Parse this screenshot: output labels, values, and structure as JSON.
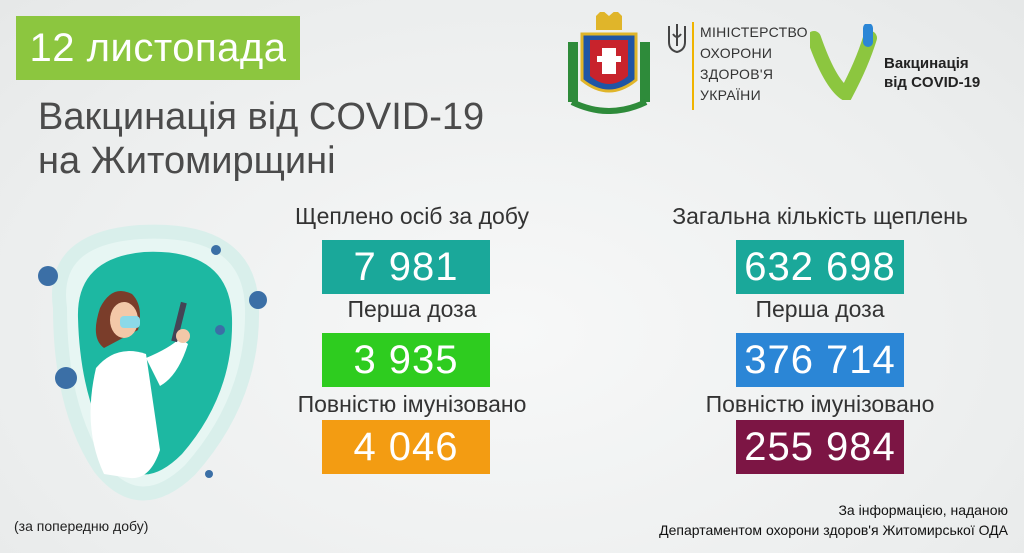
{
  "header": {
    "date": "12 листопада",
    "title_line1": "Вакцинація від COVID-19",
    "title_line2": "на Житомирщині"
  },
  "logos": {
    "ministry_lines": [
      "МІНІСТЕРСТВО",
      "ОХОРОНИ",
      "ЗДОРОВ'Я",
      "УКРАЇНИ"
    ],
    "vax_lines": [
      "Вакцинація",
      "від COVID-19"
    ]
  },
  "daily": {
    "heading": "Щеплено осіб за добу",
    "total": "7 981",
    "first_dose_label": "Перша доза",
    "first_dose": "3 935",
    "full_label": "Повністю імунізовано",
    "full": "4 046"
  },
  "overall": {
    "heading": "Загальна кількість щеплень",
    "total": "632 698",
    "first_dose_label": "Перша доза",
    "first_dose": "376 714",
    "full_label": "Повністю імунізовано",
    "full": "255 984"
  },
  "footnote": "(за попередню добу)",
  "source_lines": [
    "За інформацією, наданою",
    "Департаментом охорони здоров'я Житомирської ОДА"
  ],
  "colors": {
    "date_badge": "#8cc63f",
    "daily_total": "#1aa89a",
    "daily_first": "#2ecc1f",
    "daily_full": "#f39c12",
    "overall_total": "#1aa89a",
    "overall_first": "#2b86d6",
    "overall_full": "#7c1544"
  }
}
